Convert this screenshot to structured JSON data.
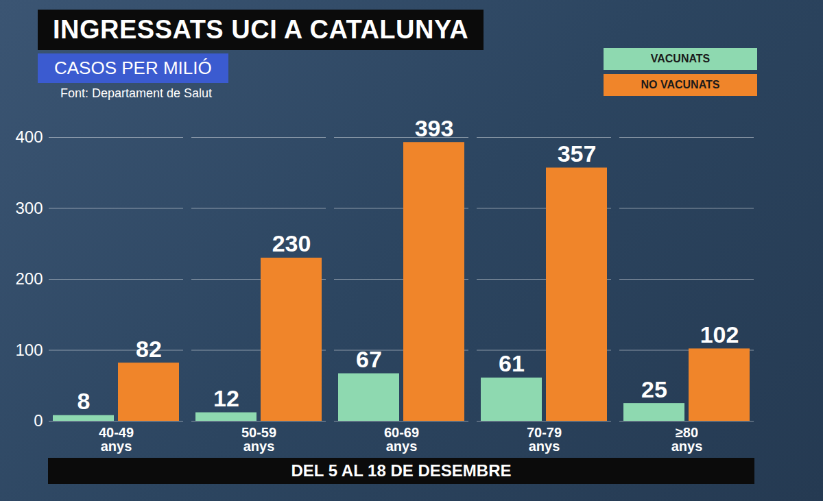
{
  "chart_data": {
    "type": "bar",
    "title": "INGRESSATS UCI A CATALUNYA",
    "subtitle": "CASOS PER MILIÓ",
    "source": "Font: Departament de Salut",
    "x_label": "DEL 5 AL 18 DE DESEMBRE",
    "categories": [
      "40-49 anys",
      "50-59 anys",
      "60-69 anys",
      "70-79 anys",
      "≥80 anys"
    ],
    "series": [
      {
        "name": "VACUNATS",
        "color": "#8ed9b0",
        "values": [
          8,
          12,
          67,
          61,
          25
        ]
      },
      {
        "name": "NO VACUNATS",
        "color": "#f0852a",
        "values": [
          82,
          230,
          393,
          357,
          102
        ]
      }
    ],
    "ylim": [
      0,
      400
    ],
    "yticks": [
      0,
      100,
      200,
      300,
      400
    ],
    "grid": true,
    "data_labels": true,
    "legend": "top-right"
  }
}
